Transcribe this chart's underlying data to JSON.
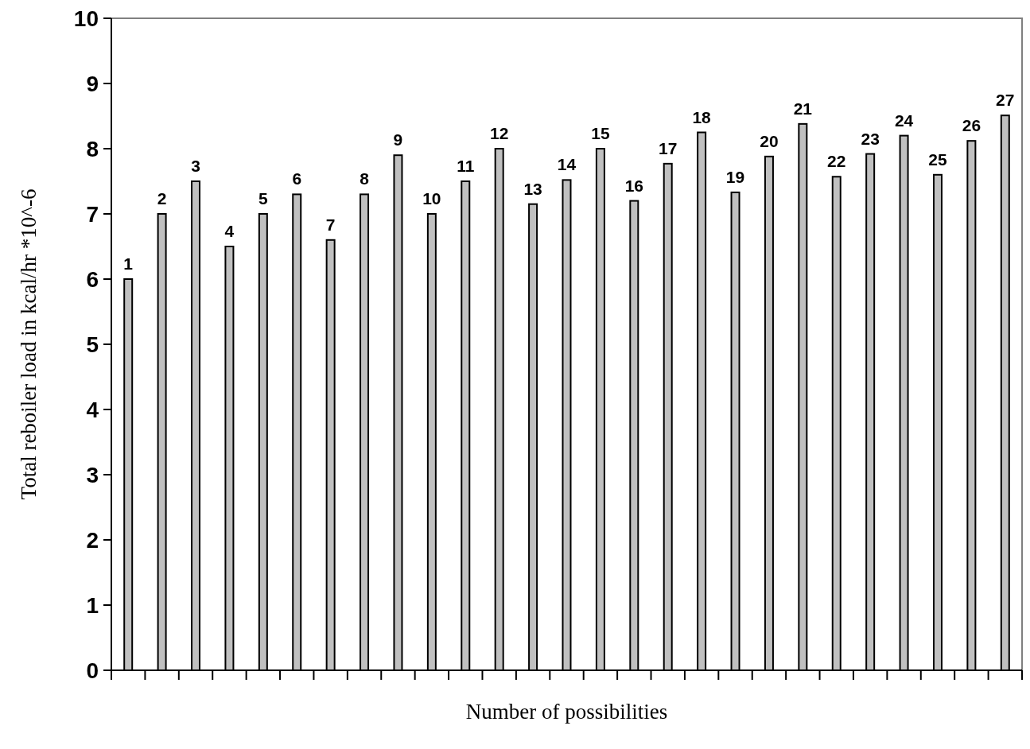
{
  "chart_data": {
    "type": "bar",
    "xlabel": "Number of possibilities",
    "ylabel": "Total reboiler load in kcal/hr *10^-6",
    "categories": [
      "1",
      "2",
      "3",
      "4",
      "5",
      "6",
      "7",
      "8",
      "9",
      "10",
      "11",
      "12",
      "13",
      "14",
      "15",
      "16",
      "17",
      "18",
      "19",
      "20",
      "21",
      "22",
      "23",
      "24",
      "25",
      "26",
      "27"
    ],
    "values": [
      6.0,
      7.0,
      7.5,
      6.5,
      7.0,
      7.3,
      6.6,
      7.3,
      7.9,
      7.0,
      7.5,
      8.0,
      7.15,
      7.52,
      8.0,
      7.2,
      7.77,
      8.25,
      7.33,
      7.88,
      8.38,
      7.57,
      7.92,
      8.2,
      7.6,
      8.12,
      8.51
    ],
    "color": "#c0c0c0",
    "ylim": [
      0,
      10
    ],
    "yticks": [
      0,
      1,
      2,
      3,
      4,
      5,
      6,
      7,
      8,
      9,
      10
    ],
    "grid": false
  }
}
